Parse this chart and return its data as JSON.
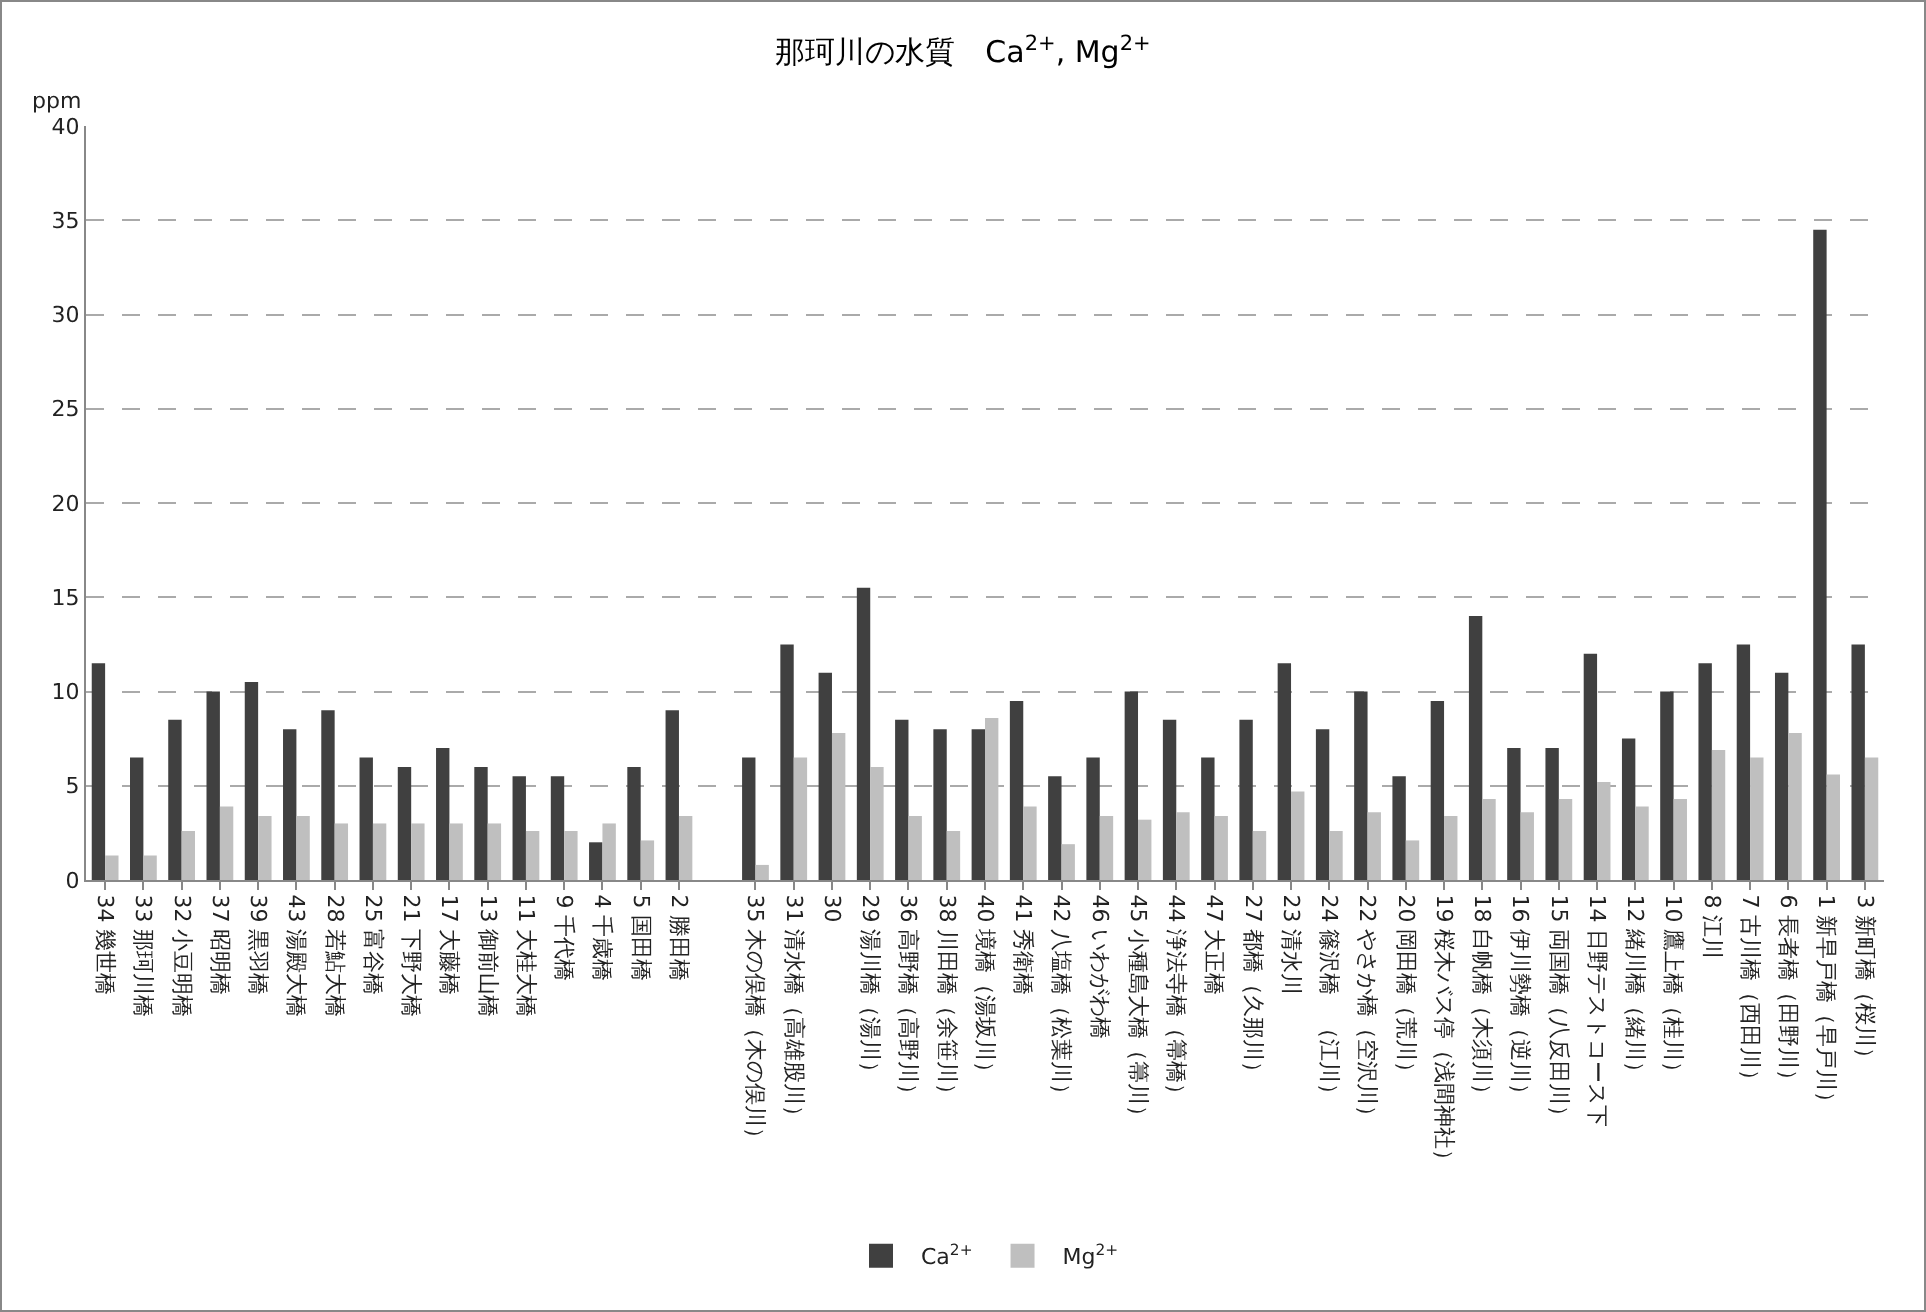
{
  "chart_data": {
    "type": "bar",
    "title": "那珂川の水質　Ca$^{2+}$, Mg$^{2+}$",
    "ylabel": "ppm",
    "categories": [
      "34 幾世橋",
      "33 那珂川橋",
      "32 小豆明橋",
      "37 昭明橋",
      "39 黒羽橋",
      "43 湯殿大橋",
      "28 若鮎大橋",
      "25 富谷橋",
      "21 下野大橋",
      "17 大藤橋",
      "13 御前山橋",
      "11 大桂大橋",
      "9 千代橋",
      "4 千歳橋",
      "5 国田橋",
      "2 勝田橋",
      null,
      "35 木の俣橋（木の俣川）",
      "31 清水橋（高雄股川）",
      "30",
      "29 湯川橋（湯川）",
      "36 高野橋（高野川）",
      "38 川田橋（余笹川）",
      "40 境橋（湯坂川）",
      "41 秀衛橋",
      "42 八塩橋（松葉川）",
      "46 いわがわ橋",
      "45 小種島大橋（箒川）",
      "44 浄法寺橋（箒橋）",
      "47 大正橋",
      "27 都橋（久那川）",
      "23 清水川",
      "24 篠沢橋　（江川）",
      "22 やさか橋（空沢川）",
      "20 岡田橋（荒川）",
      "19 桜木バス停（浅間神社）",
      "18 白帆橋（木須川）",
      "16 伊川勢橋（逆川）",
      "15 両国橋（八反田川）",
      "14 日野テストコース下",
      "12 緒川橋（緒川）",
      "10 鷹上橋（桂川）",
      "8 江川",
      "7 古川橋（西田川）",
      "6 長者橋（田野川）",
      "1 新早戸橋（早戸川）",
      "3 新町橋（桜川）"
    ],
    "series": [
      {
        "name": "Ca$^{2+}$",
        "color": "#404040",
        "values": [
          11.5,
          6.5,
          8.5,
          10,
          10.5,
          8,
          9,
          6.5,
          6,
          7,
          6,
          5.5,
          5.5,
          2,
          6,
          9,
          null,
          6.5,
          12.5,
          11,
          15.5,
          8.5,
          8,
          8,
          9.5,
          5.5,
          6.5,
          10,
          8.5,
          6.5,
          8.5,
          11.5,
          8,
          10,
          5.5,
          9.5,
          14,
          7,
          7,
          12,
          7.5,
          10,
          11.5,
          12.5,
          11,
          34.5,
          12.5
        ]
      },
      {
        "name": "Mg$^{2+}$",
        "color": "#bfbfbf",
        "values": [
          1.3,
          1.3,
          2.6,
          3.9,
          3.4,
          3.4,
          3,
          3,
          3,
          3,
          3,
          2.6,
          2.6,
          3,
          2.1,
          3.4,
          null,
          0.8,
          6.5,
          7.8,
          6,
          3.4,
          2.6,
          8.6,
          3.9,
          1.9,
          3.4,
          3.2,
          3.6,
          3.4,
          2.6,
          4.7,
          2.6,
          3.6,
          2.1,
          3.4,
          4.3,
          3.6,
          4.3,
          5.2,
          3.9,
          4.3,
          6.9,
          6.5,
          7.8,
          5.6,
          6.5
        ]
      }
    ],
    "ylim": [
      0,
      40
    ],
    "yticks": [
      0,
      5,
      10,
      15,
      20,
      25,
      30,
      35,
      40
    ],
    "grid": "y",
    "legend": "bottom"
  }
}
